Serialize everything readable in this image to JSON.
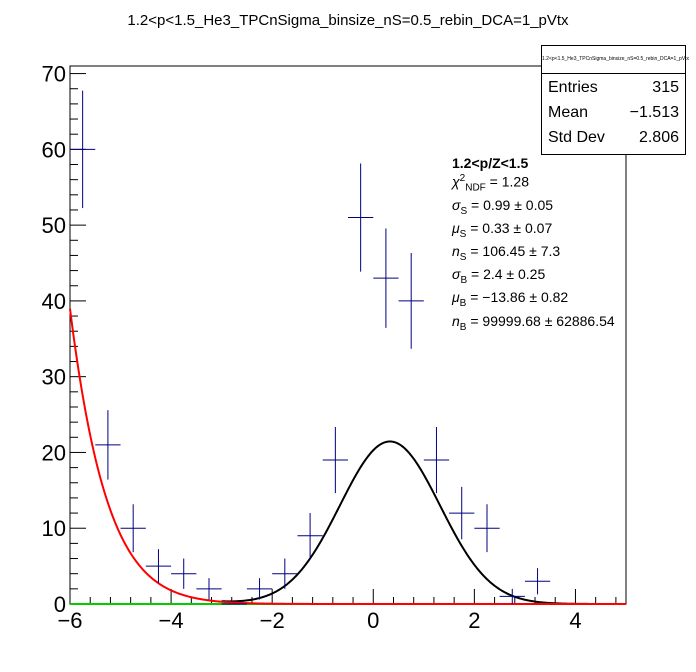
{
  "chart_data": {
    "type": "scatter",
    "title": "1.2<p<1.5_He3_TPCnSigma_binsize_nS=0.5_rebin_DCA=1_pVtx",
    "xlim": [
      -6,
      5
    ],
    "ylim": [
      0,
      71
    ],
    "xticks": [
      -6,
      -4,
      -2,
      0,
      2,
      4
    ],
    "yticks": [
      0,
      10,
      20,
      30,
      40,
      50,
      60,
      70
    ],
    "grid": false,
    "series": [
      {
        "kind": "error-points",
        "color": "#000080",
        "x_half_width": 0.25,
        "points": [
          {
            "x": -5.75,
            "y": 60,
            "err": 7.75
          },
          {
            "x": -5.25,
            "y": 21,
            "err": 4.58
          },
          {
            "x": -4.75,
            "y": 10,
            "err": 3.16
          },
          {
            "x": -4.25,
            "y": 5,
            "err": 2.24
          },
          {
            "x": -3.75,
            "y": 4,
            "err": 2.0
          },
          {
            "x": -3.25,
            "y": 2,
            "err": 1.41
          },
          {
            "x": -2.75,
            "y": 0,
            "err": 0
          },
          {
            "x": -2.25,
            "y": 2,
            "err": 1.41
          },
          {
            "x": -1.75,
            "y": 4,
            "err": 2.0
          },
          {
            "x": -1.25,
            "y": 9,
            "err": 3.0
          },
          {
            "x": -0.75,
            "y": 19,
            "err": 4.36
          },
          {
            "x": -0.25,
            "y": 51,
            "err": 7.14
          },
          {
            "x": 0.25,
            "y": 43,
            "err": 6.56
          },
          {
            "x": 0.75,
            "y": 40,
            "err": 6.32
          },
          {
            "x": 1.25,
            "y": 19,
            "err": 4.36
          },
          {
            "x": 1.75,
            "y": 12,
            "err": 3.46
          },
          {
            "x": 2.25,
            "y": 10,
            "err": 3.16
          },
          {
            "x": 2.75,
            "y": 1,
            "err": 1.0
          },
          {
            "x": 3.25,
            "y": 3,
            "err": 1.73
          }
        ]
      },
      {
        "kind": "fit-total",
        "color": "#000000"
      },
      {
        "kind": "fit-background",
        "color": "#ff0000"
      },
      {
        "kind": "fit-zero",
        "color": "#00cc00"
      }
    ],
    "fit_params": {
      "sigma_s": 0.99,
      "mu_s": 0.33,
      "n_s": 106.45,
      "sigma_b": 2.4,
      "mu_b": -13.86,
      "n_b": 99999.68
    }
  },
  "stats": {
    "name": "1.2<p<1.5_He3_TPCnSigma_binsize_nS=0.5_rebin_DCA=1_pVtx",
    "entries_label": "Entries",
    "entries_value": "315",
    "mean_label": "Mean",
    "mean_value": "−1.513",
    "stddev_label": "Std Dev",
    "stddev_value": "2.806"
  },
  "fit_box": {
    "heading": "1.2<p/Z<1.5",
    "chi2_symbol": "χ",
    "chi2_sup": "2",
    "chi2_sub": "NDF",
    "chi2_value": " = 1.28",
    "sigma_s_symbol": "σ",
    "sigma_s_sub": "S",
    "sigma_s_value": " = 0.99 ± 0.05",
    "mu_s_symbol": "μ",
    "mu_s_sub": "S",
    "mu_s_value": " = 0.33 ± 0.07",
    "n_s_symbol": "n",
    "n_s_sub": "S",
    "n_s_value": " = 106.45 ± 7.3",
    "sigma_b_symbol": "σ",
    "sigma_b_sub": "B",
    "sigma_b_value": " = 2.4 ± 0.25",
    "mu_b_symbol": "μ",
    "mu_b_sub": "B",
    "mu_b_value": " = −13.86 ± 0.82",
    "n_b_symbol": "n",
    "n_b_sub": "B",
    "n_b_value": " = 99999.68 ± 62886.54"
  }
}
